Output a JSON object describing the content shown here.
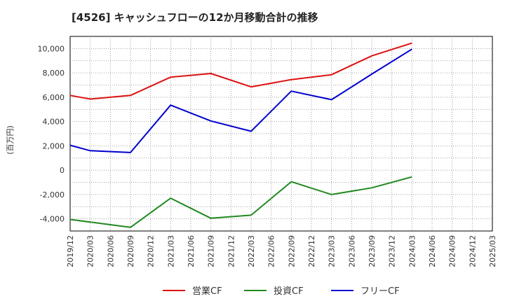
{
  "chart_data": {
    "type": "line",
    "title": "[4526]  キャッシュフローの12か月移動合計の推移",
    "ylabel": "(百万円)",
    "xlabel": "",
    "ylim": [
      -5000,
      11000
    ],
    "yticks": [
      -4000,
      -2000,
      0,
      2000,
      4000,
      6000,
      8000,
      10000
    ],
    "ytick_labels": [
      "-4,000",
      "-2,000",
      "0",
      "2,000",
      "4,000",
      "6,000",
      "8,000",
      "10,000"
    ],
    "categories": [
      "2019/12",
      "2020/03",
      "2020/06",
      "2020/09",
      "2020/12",
      "2021/03",
      "2021/06",
      "2021/09",
      "2021/12",
      "2022/03",
      "2022/06",
      "2022/09",
      "2022/12",
      "2023/03",
      "2023/06",
      "2023/09",
      "2023/12",
      "2024/03",
      "2024/06",
      "2024/09",
      "2024/12",
      "2025/03"
    ],
    "grid": true,
    "legend_position": "bottom",
    "series": [
      {
        "name": "営業CF",
        "color": "#dd1111",
        "values": [
          6150,
          5850,
          null,
          6150,
          null,
          7650,
          null,
          7950,
          null,
          6850,
          null,
          7450,
          null,
          7850,
          null,
          9400,
          null,
          10450,
          null,
          null,
          null,
          null
        ]
      },
      {
        "name": "投資CF",
        "color": "#228822",
        "values": [
          -4050,
          null,
          null,
          -4700,
          null,
          -2300,
          null,
          -3950,
          null,
          -3700,
          null,
          -950,
          null,
          -2000,
          null,
          -1450,
          null,
          -550,
          null,
          null,
          null,
          null
        ]
      },
      {
        "name": "フリーCF",
        "color": "#0000cc",
        "values": [
          2050,
          1600,
          null,
          1450,
          null,
          5350,
          null,
          4050,
          null,
          3200,
          null,
          6500,
          null,
          5800,
          null,
          7900,
          null,
          9950,
          null,
          null,
          null,
          null
        ]
      }
    ]
  }
}
